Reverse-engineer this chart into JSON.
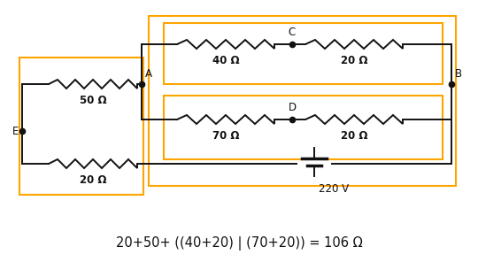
{
  "bg_color": "#ffffff",
  "orange": "#FFA500",
  "black": "#111111",
  "fig_width": 5.4,
  "fig_height": 2.96,
  "formula_text": "20+50+ ((40+20) | (70+20)) = 106 Ω",
  "label_50": "50 Ω",
  "label_20_bottom": "20 Ω",
  "label_40": "40 Ω",
  "label_20_C": "20 Ω",
  "label_70": "70 Ω",
  "label_20_D": "20 Ω",
  "label_220": "220 V",
  "node_A": "A",
  "node_B": "B",
  "node_C": "C",
  "node_D": "D",
  "node_E": "E"
}
